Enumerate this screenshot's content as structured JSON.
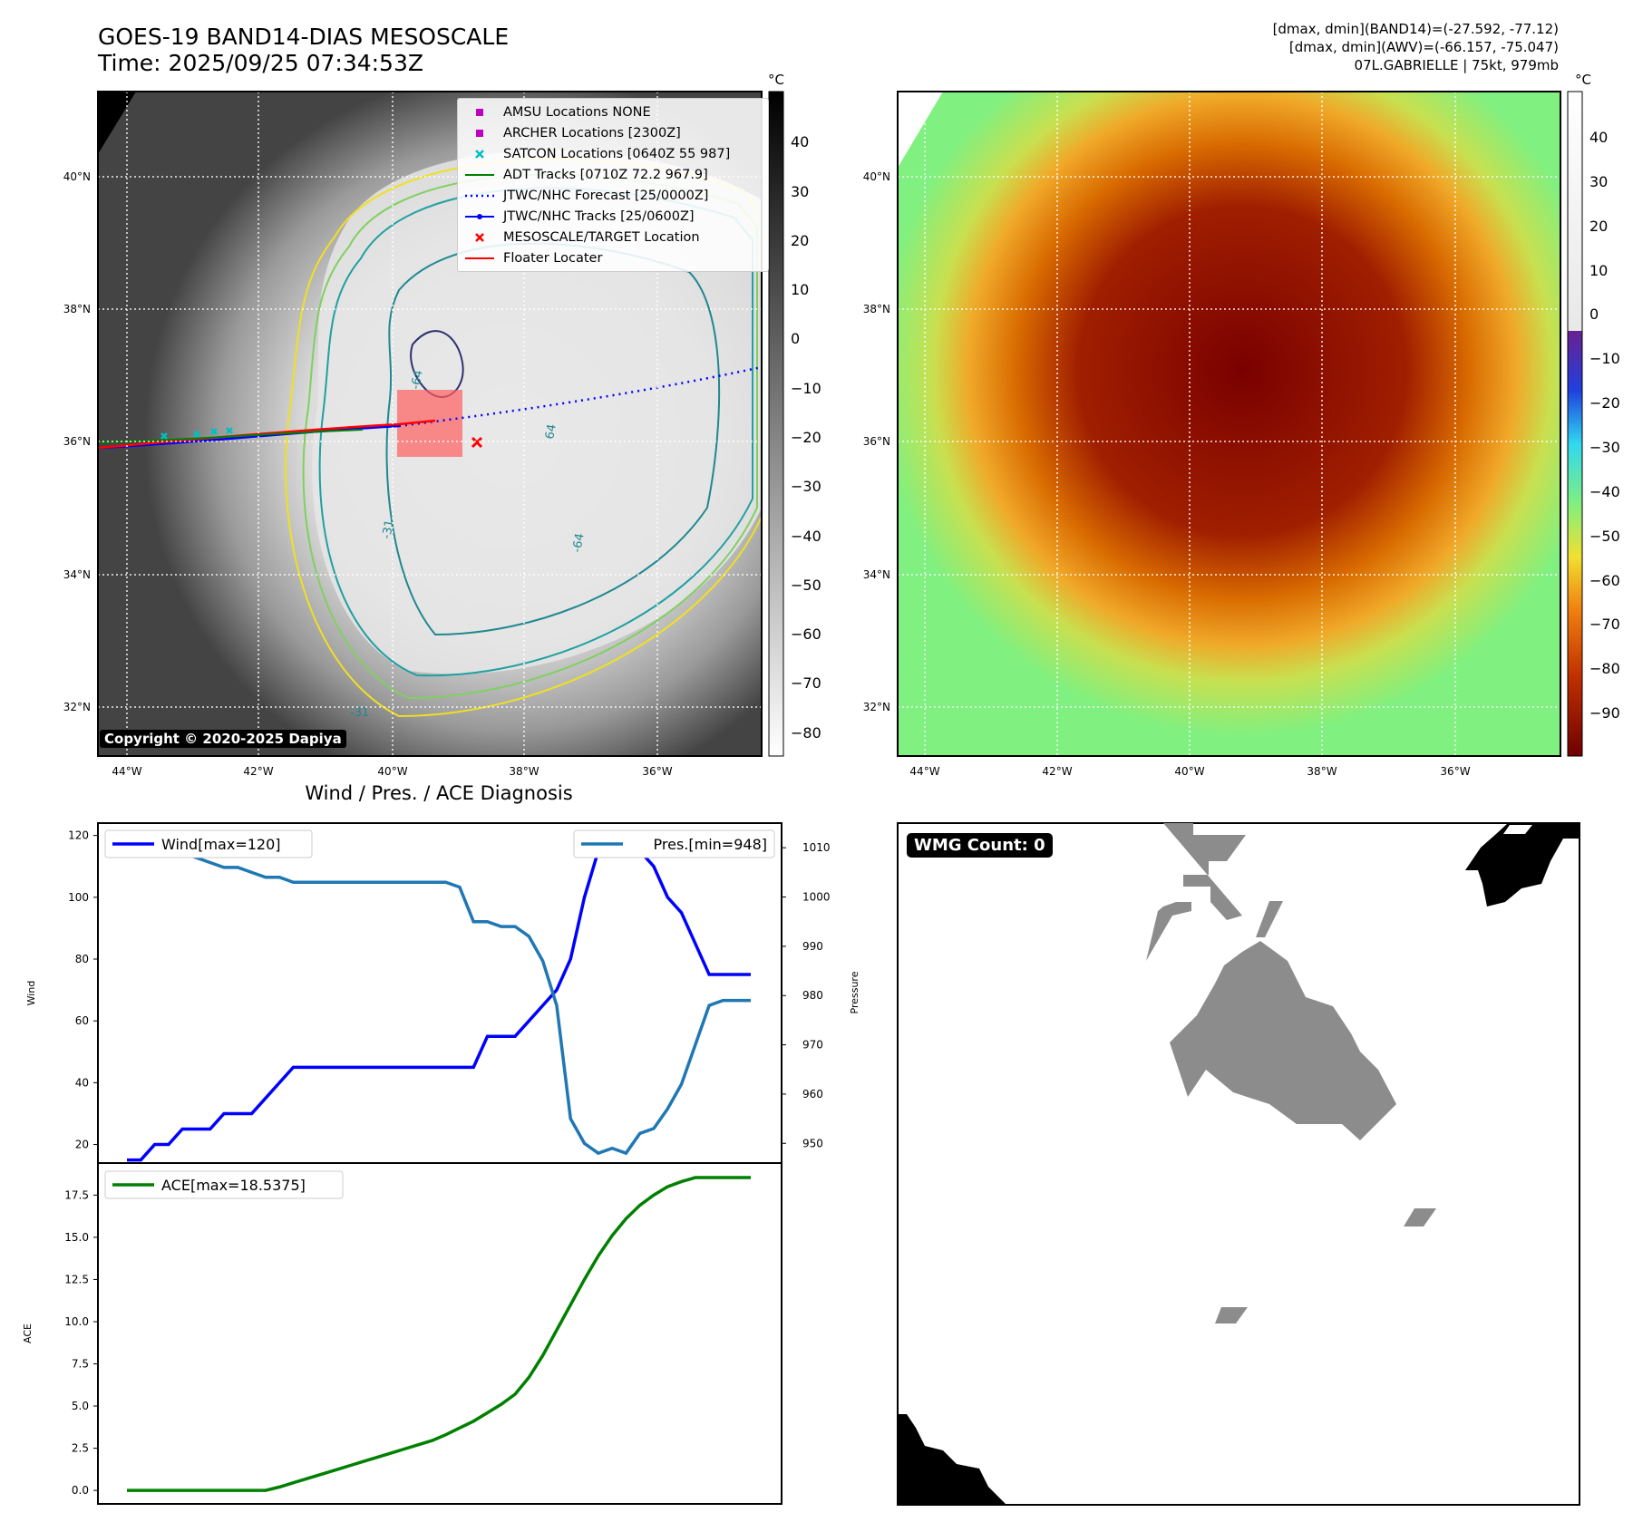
{
  "header": {
    "title_line1": "GOES-19 BAND14-DIAS MESOSCALE",
    "title_line2": "Time: 2025/09/25 07:34:53Z",
    "right_line1": "[dmax, dmin](BAND14)=(-27.592, -77.12)",
    "right_line2": "[dmax, dmin](AWV)=(-66.157, -75.047)",
    "right_line3": "07L.GABRIELLE | 75kt, 979mb"
  },
  "colors": {
    "wind": "#0000ff",
    "pressure": "#1f77b4",
    "ace": "#008000",
    "forecast": "#0000ff",
    "tracks": "#0000ff",
    "adt": "#008000",
    "target": "#ff0000",
    "floater": "#ff0000"
  },
  "map": {
    "lat_labels": [
      "40°N",
      "38°N",
      "36°N",
      "34°N",
      "32°N"
    ],
    "lon_labels": [
      "44°W",
      "42°W",
      "40°W",
      "38°W",
      "36°W"
    ],
    "copyright": "Copyright © 2020-2025 Dapiya",
    "contour_labels": [
      "64",
      "-64",
      "-31",
      "-31",
      "-64"
    ]
  },
  "legend": {
    "items": [
      {
        "label": "AMSU Locations NONE",
        "symbol": "square",
        "color": "#c000c0"
      },
      {
        "label": "ARCHER Locations [2300Z]",
        "symbol": "square",
        "color": "#c000c0"
      },
      {
        "label": "SATCON Locations [0640Z 55 987]",
        "symbol": "x",
        "color": "#00c0c0"
      },
      {
        "label": "ADT Tracks [0710Z 72.2 967.9]",
        "symbol": "line",
        "color": "#008000"
      },
      {
        "label": "JTWC/NHC Forecast [25/0000Z]",
        "symbol": "dotted",
        "color": "#0000ff"
      },
      {
        "label": "JTWC/NHC Tracks [25/0600Z]",
        "symbol": "dot-line",
        "color": "#0000ff"
      },
      {
        "label": "MESOSCALE/TARGET Location",
        "symbol": "x",
        "color": "#ff0000"
      },
      {
        "label": "Floater Locater",
        "symbol": "line",
        "color": "#ff0000"
      }
    ]
  },
  "colorbar_ir": {
    "unit": "°C",
    "ticks": [
      "40",
      "30",
      "20",
      "10",
      "0",
      "−10",
      "−20",
      "−30",
      "−40",
      "−50",
      "−60",
      "−70",
      "−80"
    ]
  },
  "colorbar_wv": {
    "unit": "°C",
    "ticks": [
      "40",
      "30",
      "20",
      "10",
      "0",
      "−10",
      "−20",
      "−30",
      "−40",
      "−50",
      "−60",
      "−70",
      "−80",
      "−90"
    ]
  },
  "wmg": {
    "label": "WMG Count: 0"
  },
  "chart_data": [
    {
      "type": "line",
      "title": "Wind / Pres. / ACE Diagnosis",
      "ylabel": "Wind",
      "ylabel_right": "Pressure",
      "ylim": [
        14,
        124
      ],
      "ylim_right": [
        946,
        1015
      ],
      "yticks": [
        20,
        40,
        60,
        80,
        100,
        120
      ],
      "yticks_right": [
        950,
        960,
        970,
        980,
        990,
        1000,
        1010
      ],
      "x": [
        0,
        1,
        2,
        3,
        4,
        5,
        6,
        7,
        8,
        9,
        10,
        11,
        12,
        13,
        14,
        15,
        16,
        17,
        18,
        19,
        20,
        21,
        22,
        23,
        24,
        25,
        26,
        27,
        28,
        29,
        30,
        31,
        32,
        33,
        34,
        35,
        36,
        37,
        38,
        39,
        40,
        41,
        42,
        43,
        44,
        45
      ],
      "series": [
        {
          "name": "Wind[max=120]",
          "axis": "left",
          "values": [
            15,
            15,
            20,
            20,
            25,
            25,
            25,
            30,
            30,
            30,
            35,
            40,
            45,
            45,
            45,
            45,
            45,
            45,
            45,
            45,
            45,
            45,
            45,
            45,
            45,
            45,
            55,
            55,
            55,
            60,
            65,
            70,
            80,
            100,
            115,
            120,
            120,
            115,
            110,
            100,
            95,
            85,
            75,
            75,
            75,
            75
          ]
        },
        {
          "name": "Pres.[min=948]",
          "axis": "right",
          "values": [
            1012,
            1012,
            1011,
            1010,
            1009,
            1008,
            1007,
            1006,
            1006,
            1005,
            1004,
            1004,
            1003,
            1003,
            1003,
            1003,
            1003,
            1003,
            1003,
            1003,
            1003,
            1003,
            1003,
            1003,
            1002,
            995,
            995,
            994,
            994,
            992,
            987,
            978,
            955,
            950,
            948,
            949,
            948,
            952,
            953,
            957,
            962,
            970,
            978,
            979,
            979,
            979
          ]
        }
      ]
    },
    {
      "type": "line",
      "ylabel": "ACE",
      "ylim": [
        -0.8,
        19.4
      ],
      "yticks": [
        "0.0",
        "2.5",
        "5.0",
        "7.5",
        "10.0",
        "12.5",
        "15.0",
        "17.5"
      ],
      "x": [
        0,
        1,
        2,
        3,
        4,
        5,
        6,
        7,
        8,
        9,
        10,
        11,
        12,
        13,
        14,
        15,
        16,
        17,
        18,
        19,
        20,
        21,
        22,
        23,
        24,
        25,
        26,
        27,
        28,
        29,
        30,
        31,
        32,
        33,
        34,
        35,
        36,
        37,
        38,
        39,
        40,
        41,
        42,
        43,
        44,
        45
      ],
      "series": [
        {
          "name": "ACE[max=18.5375]",
          "values": [
            0,
            0,
            0,
            0,
            0,
            0,
            0,
            0,
            0,
            0,
            0,
            0.2,
            0.45,
            0.7,
            0.95,
            1.2,
            1.45,
            1.7,
            1.95,
            2.2,
            2.45,
            2.7,
            2.95,
            3.3,
            3.7,
            4.1,
            4.6,
            5.1,
            5.7,
            6.7,
            8.0,
            9.5,
            11.0,
            12.5,
            13.9,
            15.1,
            16.1,
            16.9,
            17.5,
            18.0,
            18.3,
            18.5375,
            18.5375,
            18.5375,
            18.5375,
            18.5375
          ]
        }
      ]
    }
  ]
}
